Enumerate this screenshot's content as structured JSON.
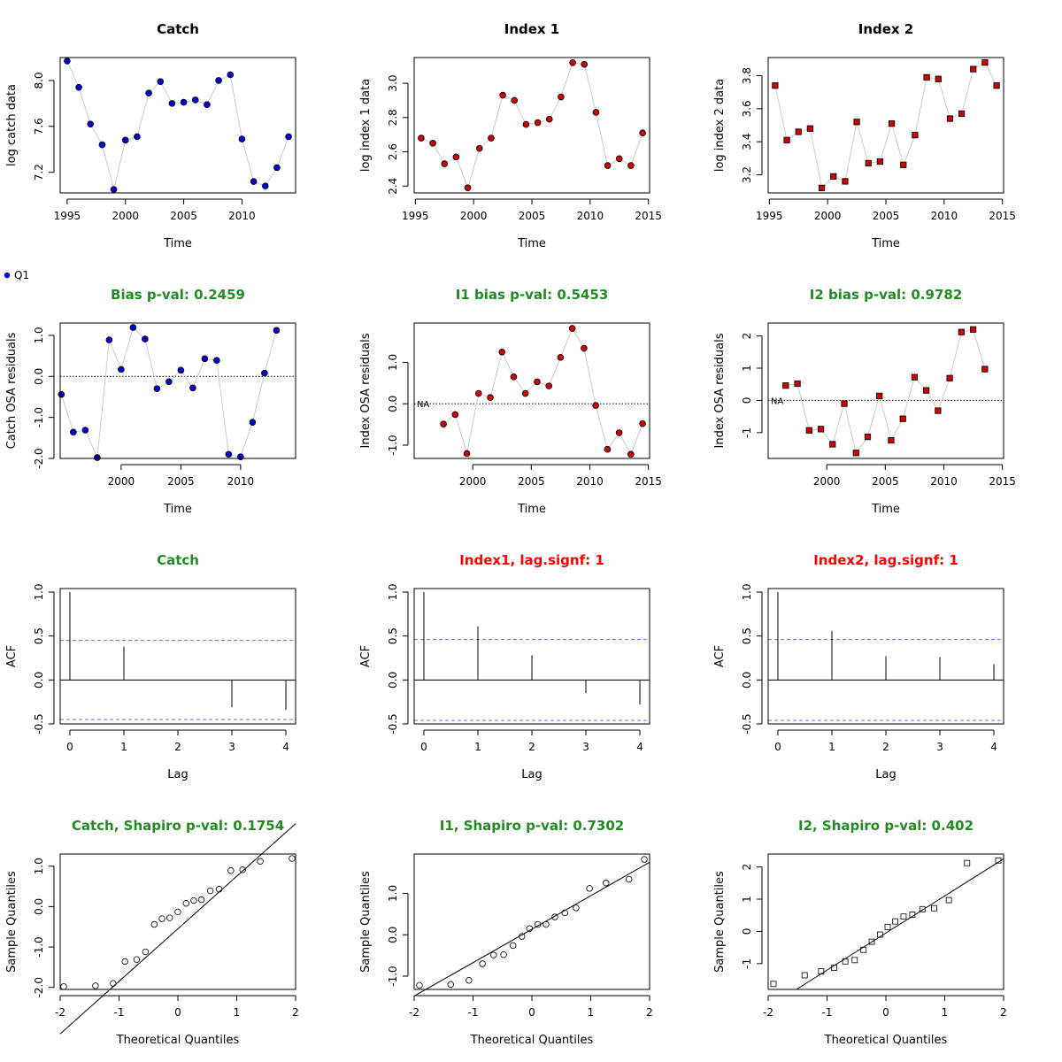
{
  "legend": {
    "label": "Q1",
    "color": "#0000cc"
  },
  "colors": {
    "catch": "#0000cc",
    "index": "#cc0000",
    "ok": "#228b22",
    "bad": "#ff0000",
    "ci": "#6666ff"
  },
  "chart_data": [
    {
      "id": "catch-data",
      "type": "line",
      "title": "Catch",
      "title_color": "ok",
      "xlabel": "Time",
      "ylabel": "log catch data",
      "xlim": [
        1994.4,
        2014.6
      ],
      "ylim": [
        7.02,
        8.2
      ],
      "xticks": [
        1995,
        2000,
        2005,
        2010
      ],
      "yticks": [
        7.2,
        7.6,
        8.0
      ],
      "yticklabels": [
        "7.2",
        "7.6",
        "8.0"
      ],
      "marker": "circle",
      "color": "catch",
      "title_black": true,
      "x": [
        1995,
        1996,
        1997,
        1998,
        1999,
        2000,
        2001,
        2002,
        2003,
        2004,
        2005,
        2006,
        2007,
        2008,
        2009,
        2010,
        2011,
        2012,
        2013,
        2014
      ],
      "y": [
        8.17,
        7.94,
        7.62,
        7.44,
        7.05,
        7.48,
        7.51,
        7.89,
        7.99,
        7.8,
        7.81,
        7.83,
        7.79,
        8.0,
        8.05,
        7.49,
        7.12,
        7.08,
        7.24,
        7.51
      ]
    },
    {
      "id": "index1-data",
      "type": "line",
      "title": "Index 1",
      "title_black": true,
      "xlabel": "Time",
      "ylabel": "log index 1 data",
      "xlim": [
        1994.9,
        2015.1
      ],
      "ylim": [
        2.36,
        3.15
      ],
      "xticks": [
        1995,
        2000,
        2005,
        2010,
        2015
      ],
      "yticks": [
        2.4,
        2.6,
        2.8,
        3.0
      ],
      "yticklabels": [
        "2.4",
        "2.6",
        "2.8",
        "3.0"
      ],
      "marker": "circle",
      "color": "index",
      "x": [
        1995.5,
        1996.5,
        1997.5,
        1998.5,
        1999.5,
        2000.5,
        2001.5,
        2002.5,
        2003.5,
        2004.5,
        2005.5,
        2006.5,
        2007.5,
        2008.5,
        2009.5,
        2010.5,
        2011.5,
        2012.5,
        2013.5,
        2014.5
      ],
      "y": [
        2.68,
        2.65,
        2.53,
        2.57,
        2.39,
        2.62,
        2.68,
        2.93,
        2.9,
        2.76,
        2.77,
        2.79,
        2.92,
        3.12,
        3.11,
        2.83,
        2.52,
        2.56,
        2.52,
        2.71
      ]
    },
    {
      "id": "index2-data",
      "type": "line",
      "title": "Index 2",
      "title_black": true,
      "xlabel": "Time",
      "ylabel": "log index 2 data",
      "xlim": [
        1994.9,
        2015.1
      ],
      "ylim": [
        3.09,
        3.91
      ],
      "xticks": [
        1995,
        2000,
        2005,
        2010,
        2015
      ],
      "yticks": [
        3.2,
        3.4,
        3.6,
        3.8
      ],
      "yticklabels": [
        "3.2",
        "3.4",
        "3.6",
        "3.8"
      ],
      "marker": "square",
      "color": "index",
      "x": [
        1995.5,
        1996.5,
        1997.5,
        1998.5,
        1999.5,
        2000.5,
        2001.5,
        2002.5,
        2003.5,
        2004.5,
        2005.5,
        2006.5,
        2007.5,
        2008.5,
        2009.5,
        2010.5,
        2011.5,
        2012.5,
        2013.5,
        2014.5
      ],
      "y": [
        3.74,
        3.41,
        3.46,
        3.48,
        3.12,
        3.19,
        3.16,
        3.52,
        3.27,
        3.28,
        3.51,
        3.26,
        3.44,
        3.79,
        3.78,
        3.54,
        3.57,
        3.84,
        3.88,
        3.74
      ]
    },
    {
      "id": "catch-resid",
      "type": "line",
      "title": "Bias p-val: 0.2459",
      "title_color": "ok",
      "xlabel": "Time",
      "ylabel": "Catch OSA residuals",
      "xlim": [
        1994.9,
        2014.6
      ],
      "ylim": [
        -2.0,
        1.3
      ],
      "xticks": [
        2000,
        2005,
        2010
      ],
      "yticks": [
        -2.0,
        -1.0,
        0.0,
        1.0
      ],
      "yticklabels": [
        "-2.0",
        "-1.0",
        "0.0",
        "1.0"
      ],
      "marker": "circle",
      "color": "catch",
      "zero_line": true,
      "x": [
        1995,
        1996,
        1997,
        1998,
        1999,
        2000,
        2001,
        2002,
        2003,
        2004,
        2005,
        2006,
        2007,
        2008,
        2009,
        2010,
        2011,
        2012,
        2013,
        2014
      ],
      "y": [
        -0.44,
        -1.36,
        -1.31,
        -1.98,
        0.89,
        0.17,
        1.19,
        0.91,
        -0.3,
        -0.13,
        0.15,
        -0.28,
        0.43,
        0.39,
        -1.9,
        -1.96,
        -1.12,
        0.08,
        1.12,
        null
      ]
    },
    {
      "id": "index1-resid",
      "type": "line",
      "title": "I1 bias p-val: 0.5453",
      "title_color": "ok",
      "xlabel": "Time",
      "ylabel": "Index OSA residuals",
      "xlim": [
        1995.0,
        2015.1
      ],
      "ylim": [
        -1.32,
        1.95
      ],
      "xticks": [
        2000,
        2005,
        2010,
        2015
      ],
      "yticks": [
        -1.0,
        0.0,
        1.0
      ],
      "yticklabels": [
        "-1.0",
        "0.0",
        "1.0"
      ],
      "marker": "circle",
      "color": "index",
      "zero_line": true,
      "na_label": "NA",
      "x": [
        1997.5,
        1998.5,
        1999.5,
        2000.5,
        2001.5,
        2002.5,
        2003.5,
        2004.5,
        2005.5,
        2006.5,
        2007.5,
        2008.5,
        2009.5,
        2010.5,
        2011.5,
        2012.5,
        2013.5,
        2014.5
      ],
      "y": [
        -0.49,
        -0.26,
        -1.2,
        0.25,
        0.15,
        1.25,
        0.65,
        0.25,
        0.53,
        0.43,
        1.12,
        1.82,
        1.34,
        -0.04,
        -1.1,
        -0.7,
        -1.22,
        -0.48
      ]
    },
    {
      "id": "index2-resid",
      "type": "line",
      "title": "I2 bias p-val: 0.9782",
      "title_color": "ok",
      "xlabel": "Time",
      "ylabel": "Index OSA residuals",
      "xlim": [
        1995.0,
        2015.1
      ],
      "ylim": [
        -1.8,
        2.4
      ],
      "xticks": [
        2000,
        2005,
        2010,
        2015
      ],
      "yticks": [
        -1,
        0,
        1,
        2
      ],
      "yticklabels": [
        "-1",
        "0",
        "1",
        "2"
      ],
      "marker": "square",
      "color": "index",
      "zero_line": true,
      "na_label": "NA",
      "x": [
        1996.5,
        1997.5,
        1998.5,
        1999.5,
        2000.5,
        2001.5,
        2002.5,
        2003.5,
        2004.5,
        2005.5,
        2006.5,
        2007.5,
        2008.5,
        2009.5,
        2010.5,
        2011.5,
        2012.5,
        2013.5,
        2014.5
      ],
      "y": [
        0.46,
        0.52,
        -0.93,
        -0.89,
        -1.36,
        -0.1,
        -1.63,
        -1.13,
        0.14,
        -1.24,
        -0.57,
        0.72,
        0.31,
        -0.32,
        0.69,
        2.12,
        2.2,
        0.97,
        null
      ]
    },
    {
      "id": "catch-acf",
      "type": "bar",
      "title": "Catch",
      "title_color": "ok",
      "xlabel": "Lag",
      "ylabel": "ACF",
      "xlim": [
        -0.18,
        4.18
      ],
      "ylim": [
        -0.5,
        1.04
      ],
      "xticks": [
        0,
        1,
        2,
        3,
        4
      ],
      "yticks": [
        -0.5,
        0.0,
        0.5,
        1.0
      ],
      "yticklabels": [
        "-0.5",
        "0.0",
        "0.5",
        "1.0"
      ],
      "ci": 0.45,
      "x": [
        0,
        1,
        2,
        3,
        4
      ],
      "y": [
        1.0,
        0.38,
        0.0,
        -0.31,
        -0.34
      ]
    },
    {
      "id": "index1-acf",
      "type": "bar",
      "title": "Index1, lag.signf: 1",
      "title_color": "bad",
      "xlabel": "Lag",
      "ylabel": "ACF",
      "xlim": [
        -0.18,
        4.18
      ],
      "ylim": [
        -0.5,
        1.04
      ],
      "xticks": [
        0,
        1,
        2,
        3,
        4
      ],
      "yticks": [
        -0.5,
        0.0,
        0.5,
        1.0
      ],
      "yticklabels": [
        "-0.5",
        "0.0",
        "0.5",
        "1.0"
      ],
      "ci": 0.46,
      "x": [
        0,
        1,
        2,
        3,
        4
      ],
      "y": [
        1.0,
        0.61,
        0.28,
        -0.15,
        -0.28
      ]
    },
    {
      "id": "index2-acf",
      "type": "bar",
      "title": "Index2, lag.signf: 1",
      "title_color": "bad",
      "xlabel": "Lag",
      "ylabel": "ACF",
      "xlim": [
        -0.18,
        4.18
      ],
      "ylim": [
        -0.5,
        1.04
      ],
      "xticks": [
        0,
        1,
        2,
        3,
        4
      ],
      "yticks": [
        -0.5,
        0.0,
        0.5,
        1.0
      ],
      "yticklabels": [
        "-0.5",
        "0.0",
        "0.5",
        "1.0"
      ],
      "ci": 0.46,
      "x": [
        0,
        1,
        2,
        3,
        4
      ],
      "y": [
        1.0,
        0.56,
        0.27,
        0.26,
        0.18
      ]
    },
    {
      "id": "catch-qq",
      "type": "scatter",
      "title": "Catch, Shapiro p-val: 0.1754",
      "title_color": "ok",
      "xlabel": "Theoretical Quantiles",
      "ylabel": "Sample Quantiles",
      "xlim": [
        -2.0,
        2.0
      ],
      "ylim": [
        -2.05,
        1.3
      ],
      "xticks": [
        -2,
        -1,
        0,
        1,
        2
      ],
      "yticks": [
        -2.0,
        -1.0,
        0.0,
        1.0
      ],
      "yticklabels": [
        "-2.0",
        "-1.0",
        "0.0",
        "1.0"
      ],
      "marker": "open-circle",
      "qqline": [
        [
          -2.0,
          -3.15
        ],
        [
          2.0,
          2.05
        ]
      ],
      "x": [
        -1.94,
        -1.4,
        -1.1,
        -0.9,
        -0.7,
        -0.55,
        -0.4,
        -0.27,
        -0.14,
        0.0,
        0.14,
        0.27,
        0.4,
        0.55,
        0.7,
        0.9,
        1.1,
        1.4,
        1.94
      ],
      "y": [
        -1.98,
        -1.96,
        -1.9,
        -1.36,
        -1.31,
        -1.12,
        -0.44,
        -0.3,
        -0.28,
        -0.13,
        0.08,
        0.15,
        0.17,
        0.39,
        0.43,
        0.89,
        0.91,
        1.12,
        1.19
      ]
    },
    {
      "id": "index1-qq",
      "type": "scatter",
      "title": "I1, Shapiro p-val: 0.7302",
      "title_color": "ok",
      "xlabel": "Theoretical Quantiles",
      "ylabel": "Sample Quantiles",
      "xlim": [
        -2.0,
        2.0
      ],
      "ylim": [
        -1.32,
        1.95
      ],
      "xticks": [
        -2,
        -1,
        0,
        1,
        2
      ],
      "yticks": [
        -1.0,
        0.0,
        1.0
      ],
      "yticklabels": [
        "-1.0",
        "0.0",
        "1.0"
      ],
      "marker": "open-circle",
      "qqline": [
        [
          -2.0,
          -1.48
        ],
        [
          2.0,
          1.75
        ]
      ],
      "x": [
        -1.91,
        -1.38,
        -1.07,
        -0.84,
        -0.65,
        -0.48,
        -0.32,
        -0.17,
        -0.04,
        0.1,
        0.24,
        0.39,
        0.56,
        0.75,
        0.98,
        1.26,
        1.65,
        1.91
      ],
      "y": [
        -1.22,
        -1.2,
        -1.1,
        -0.7,
        -0.49,
        -0.48,
        -0.26,
        -0.04,
        0.15,
        0.25,
        0.25,
        0.43,
        0.53,
        0.65,
        1.12,
        1.25,
        1.34,
        1.82
      ]
    },
    {
      "id": "index2-qq",
      "type": "scatter",
      "title": "I2, Shapiro p-val: 0.402",
      "title_color": "ok",
      "xlabel": "Theoretical Quantiles",
      "ylabel": "Sample Quantiles",
      "xlim": [
        -2.0,
        2.0
      ],
      "ylim": [
        -1.8,
        2.4
      ],
      "xticks": [
        -2,
        -1,
        0,
        1,
        2
      ],
      "yticks": [
        -1,
        0,
        1,
        2
      ],
      "yticklabels": [
        "-1",
        "0",
        "1",
        "2"
      ],
      "marker": "open-square",
      "qqline": [
        [
          -1.52,
          -1.8
        ],
        [
          2.0,
          2.25
        ]
      ],
      "x": [
        -1.91,
        -1.38,
        -1.1,
        -0.88,
        -0.69,
        -0.53,
        -0.38,
        -0.24,
        -0.1,
        0.03,
        0.16,
        0.3,
        0.45,
        0.62,
        0.82,
        1.07,
        1.38,
        1.91
      ],
      "y": [
        -1.63,
        -1.36,
        -1.24,
        -1.13,
        -0.93,
        -0.89,
        -0.57,
        -0.32,
        -0.1,
        0.14,
        0.31,
        0.46,
        0.52,
        0.69,
        0.72,
        0.97,
        2.12,
        2.2
      ]
    }
  ]
}
